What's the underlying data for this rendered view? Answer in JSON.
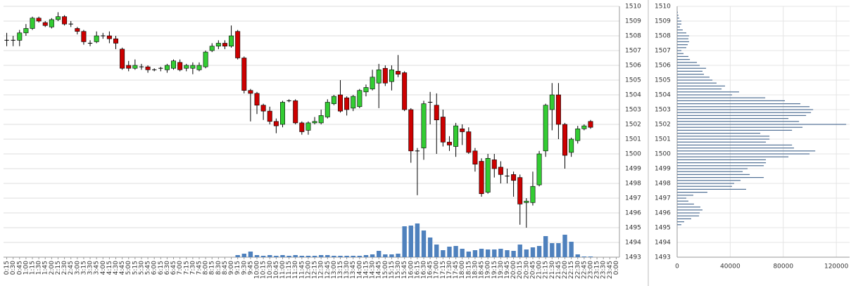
{
  "chart_data": [
    {
      "type": "candlestick",
      "categories": [
        "0:15",
        "0:30",
        "0:45",
        "1:00",
        "1:15",
        "1:30",
        "1:45",
        "2:00",
        "2:15",
        "2:30",
        "2:45",
        "3:00",
        "3:15",
        "3:30",
        "3:45",
        "4:00",
        "4:15",
        "4:30",
        "4:45",
        "5:00",
        "5:15",
        "5:30",
        "5:45",
        "6:00",
        "6:15",
        "6:30",
        "6:45",
        "7:00",
        "7:15",
        "7:30",
        "7:45",
        "8:00",
        "8:15",
        "8:30",
        "8:45",
        "9:00",
        "9:15",
        "9:30",
        "9:45",
        "10:00",
        "10:15",
        "10:30",
        "10:45",
        "11:00",
        "11:15",
        "11:30",
        "11:45",
        "12:00",
        "12:15",
        "12:30",
        "12:45",
        "13:00",
        "13:15",
        "13:30",
        "13:45",
        "14:00",
        "14:15",
        "14:30",
        "14:45",
        "15:00",
        "15:15",
        "15:30",
        "15:45",
        "16:00",
        "16:15",
        "16:30",
        "16:45",
        "17:00",
        "17:15",
        "17:30",
        "17:45",
        "18:00",
        "18:15",
        "18:30",
        "18:45",
        "19:00",
        "19:15",
        "19:30",
        "19:45",
        "20:00",
        "20:15",
        "20:30",
        "20:45",
        "21:00",
        "21:15",
        "21:30",
        "21:45",
        "22:00",
        "22:15",
        "22:30",
        "22:45",
        "23:00",
        "23:15",
        "23:30",
        "23:45",
        "0:00"
      ],
      "open": [
        1507.7,
        1507.7,
        1507.7,
        1508.2,
        1508.5,
        1509.2,
        1508.9,
        1508.6,
        1509.1,
        1509.3,
        1508.8,
        1508.5,
        1508.3,
        1507.5,
        1507.6,
        1508,
        1508,
        1507.8,
        1507.1,
        1506,
        1505.8,
        1505.9,
        1505.9,
        1505.7,
        1505.8,
        1505.7,
        1505.8,
        1506.2,
        1505.8,
        1505.8,
        1505.7,
        1505.9,
        1507,
        1507.3,
        1507.5,
        1507.3,
        1508.3,
        1506.5,
        1504.3,
        1504.1,
        1503.3,
        1502.9,
        1502.2,
        1502,
        1503.6,
        1503.6,
        1502.1,
        1501.6,
        1502.1,
        1502.1,
        1502.5,
        1503.4,
        1504,
        1503.8,
        1503.1,
        1503.2,
        1504.2,
        1504.4,
        1504.8,
        1505.8,
        1504.9,
        1505.6,
        1505.5,
        1503,
        1500.2,
        1500.4,
        1503.5,
        1503.3,
        1502.5,
        1500.8,
        1500.5,
        1501.7,
        1501.5,
        1500.2,
        1499.5,
        1497.4,
        1499.6,
        1499.1,
        1498.5,
        1498.6,
        1498.4,
        1496.7,
        1496.7,
        1497.9,
        1500.2,
        1503,
        1504,
        1502,
        1500.1,
        1500.9,
        1501.7,
        1502.2,
        null,
        null,
        null,
        null
      ],
      "high": [
        1508.2,
        1508,
        1508.4,
        1508.8,
        1509.3,
        1509.3,
        1509,
        1509.2,
        1509.6,
        1509.4,
        1509,
        1508.6,
        1508.4,
        1507.7,
        1508.3,
        1508.2,
        1508.3,
        1508,
        1507.2,
        1506.3,
        1506.4,
        1506.1,
        1506,
        1505.8,
        1505.9,
        1506.1,
        1506.4,
        1506.4,
        1506.1,
        1506.2,
        1506.2,
        1507,
        1507.5,
        1507.7,
        1507.7,
        1508.7,
        1508.4,
        1506.6,
        1504.4,
        1504.2,
        1503.4,
        1503.2,
        1502.4,
        1503.6,
        1503.7,
        1503.7,
        1502.2,
        1502.2,
        1502.5,
        1503,
        1503.7,
        1504,
        1505,
        1503.9,
        1504,
        1504.4,
        1504.7,
        1505.7,
        1506.1,
        1506,
        1506,
        1506.7,
        1505.6,
        1503.1,
        1500.4,
        1503.6,
        1504.2,
        1504.1,
        1503,
        1501.2,
        1502.1,
        1502,
        1501.8,
        1500.4,
        1499.7,
        1500,
        1500,
        1499.5,
        1499,
        1498.8,
        1498.6,
        1497,
        1498.8,
        1500.2,
        1503.4,
        1504.8,
        1504.8,
        1502.1,
        1501.1,
        1501.9,
        1502,
        1502.3,
        null,
        null,
        null,
        null
      ],
      "low": [
        1507.3,
        1507.3,
        1507.3,
        1508,
        1508.4,
        1508.9,
        1508.6,
        1508.5,
        1509,
        1508.7,
        1508.6,
        1508.1,
        1507.4,
        1507.3,
        1507.5,
        1507.8,
        1507.5,
        1507.1,
        1505.7,
        1505.6,
        1505.7,
        1505.7,
        1505.5,
        1505.6,
        1505.6,
        1505.5,
        1505.7,
        1505.6,
        1505.6,
        1505.4,
        1505.6,
        1505.8,
        1506.9,
        1507.1,
        1507.1,
        1507.2,
        1506.4,
        1504.1,
        1502.2,
        1502.7,
        1502.3,
        1502,
        1501.4,
        1501.8,
        1503.5,
        1502,
        1501.3,
        1501.3,
        1502,
        1502,
        1502.4,
        1503.3,
        1502.8,
        1502.6,
        1502.9,
        1503.1,
        1503.9,
        1504.3,
        1503.1,
        1504.6,
        1504.3,
        1505.2,
        1502.9,
        1499.4,
        1497.2,
        1499.6,
        1502,
        1500,
        1500.5,
        1500.2,
        1499.8,
        1500.6,
        1500,
        1498.8,
        1497.1,
        1497.3,
        1498.4,
        1498,
        1498,
        1497.1,
        1495.2,
        1495,
        1496.5,
        1497.8,
        1499.8,
        1501.6,
        1501,
        1499,
        1499.8,
        1500.7,
        1501.6,
        1501.7,
        null,
        null,
        null,
        null
      ],
      "close": [
        1507.7,
        1507.7,
        1508.2,
        1508.5,
        1509.2,
        1509,
        1508.7,
        1509.1,
        1509.3,
        1508.8,
        1508.8,
        1508.3,
        1507.6,
        1507.5,
        1508,
        1508,
        1507.8,
        1507.5,
        1505.8,
        1505.8,
        1506,
        1505.9,
        1505.7,
        1505.7,
        1505.8,
        1506,
        1506.3,
        1505.7,
        1506,
        1506,
        1506,
        1506.9,
        1507.3,
        1507.5,
        1507.3,
        1508,
        1506.5,
        1504.3,
        1504.1,
        1503.3,
        1502.9,
        1502.2,
        1501.9,
        1503.5,
        1503.6,
        1502.1,
        1501.5,
        1502.1,
        1502.2,
        1502.6,
        1503.5,
        1503.9,
        1502.9,
        1503,
        1503.9,
        1504.3,
        1504.5,
        1505.2,
        1505.7,
        1504.8,
        1505.7,
        1505.4,
        1503,
        1500.2,
        1500.2,
        1503.4,
        1503.5,
        1502.3,
        1500.8,
        1500.6,
        1501.9,
        1501.5,
        1500.1,
        1499.3,
        1497.3,
        1499.7,
        1499,
        1498.6,
        1498.5,
        1498.2,
        1496.6,
        1496.8,
        1497.8,
        1500,
        1503.3,
        1504,
        1502,
        1499.9,
        1501,
        1501.7,
        1501.9,
        1501.8,
        null,
        null,
        null,
        null
      ],
      "volume": [
        null,
        null,
        null,
        null,
        null,
        null,
        null,
        null,
        null,
        null,
        null,
        null,
        null,
        null,
        null,
        null,
        null,
        null,
        null,
        null,
        null,
        null,
        null,
        null,
        null,
        null,
        null,
        null,
        null,
        null,
        null,
        null,
        null,
        null,
        null,
        null,
        300,
        500,
        800,
        300,
        200,
        300,
        200,
        300,
        200,
        300,
        200,
        200,
        200,
        300,
        300,
        200,
        200,
        200,
        200,
        200,
        300,
        400,
        900,
        400,
        400,
        500,
        4400,
        4500,
        4800,
        3800,
        2800,
        1800,
        1000,
        1500,
        1600,
        1200,
        800,
        1000,
        1200,
        1100,
        1100,
        1200,
        1000,
        900,
        1800,
        1100,
        1400,
        1600,
        3000,
        2000,
        2000,
        3200,
        2200,
        400,
        100,
        100,
        null,
        null,
        null,
        null
      ],
      "up_color": "#33cc33",
      "down_color": "#cc0000",
      "volume_color": "#4f81bd",
      "ylim": [
        1493,
        1510
      ],
      "yticks": [
        1493,
        1494,
        1495,
        1496,
        1497,
        1498,
        1499,
        1500,
        1501,
        1502,
        1503,
        1504,
        1505,
        1506,
        1507,
        1508,
        1509,
        1510
      ],
      "grid": true
    },
    {
      "type": "hbar",
      "y": [
        1509.6,
        1509.4,
        1509.2,
        1509.0,
        1508.8,
        1508.6,
        1508.4,
        1508.2,
        1508.0,
        1507.8,
        1507.6,
        1507.4,
        1507.2,
        1507.0,
        1506.8,
        1506.6,
        1506.4,
        1506.2,
        1506.0,
        1505.8,
        1505.6,
        1505.4,
        1505.2,
        1505.0,
        1504.8,
        1504.6,
        1504.4,
        1504.2,
        1504.0,
        1503.8,
        1503.6,
        1503.4,
        1503.2,
        1503.0,
        1502.8,
        1502.6,
        1502.4,
        1502.2,
        1502.0,
        1501.8,
        1501.6,
        1501.4,
        1501.2,
        1501.0,
        1500.8,
        1500.6,
        1500.4,
        1500.2,
        1500.0,
        1499.8,
        1499.6,
        1499.4,
        1499.2,
        1499.0,
        1498.8,
        1498.6,
        1498.4,
        1498.2,
        1498.0,
        1497.8,
        1497.6,
        1497.4,
        1497.2,
        1497.0,
        1496.8,
        1496.6,
        1496.4,
        1496.2,
        1496.0,
        1495.8,
        1495.6,
        1495.4,
        1495.2
      ],
      "values": [
        500,
        1000,
        1600,
        3200,
        3200,
        2100,
        4200,
        6900,
        9000,
        8500,
        9000,
        8000,
        6900,
        3200,
        4800,
        8500,
        9600,
        14900,
        17000,
        21800,
        19100,
        20200,
        24400,
        26600,
        29700,
        36100,
        33500,
        46700,
        41400,
        66400,
        81200,
        92900,
        99800,
        102500,
        100900,
        97200,
        83900,
        91900,
        127400,
        94500,
        86600,
        62700,
        69600,
        69600,
        66900,
        86600,
        88100,
        104100,
        99800,
        83900,
        66900,
        66900,
        65300,
        53100,
        49400,
        54700,
        65300,
        47800,
        43000,
        41400,
        52000,
        22800,
        12200,
        6900,
        8500,
        12700,
        17500,
        19100,
        17000,
        16500,
        10600,
        5300,
        3200
      ],
      "color": "#4f6f94",
      "xlim": [
        0,
        130000
      ],
      "xticks": [
        0,
        40000,
        80000,
        120000
      ],
      "ylim": [
        1493,
        1510
      ],
      "yticks": [
        1493,
        1494,
        1495,
        1496,
        1497,
        1498,
        1499,
        1500,
        1501,
        1502,
        1503,
        1504,
        1505,
        1506,
        1507,
        1508,
        1509,
        1510
      ],
      "grid": true
    }
  ]
}
